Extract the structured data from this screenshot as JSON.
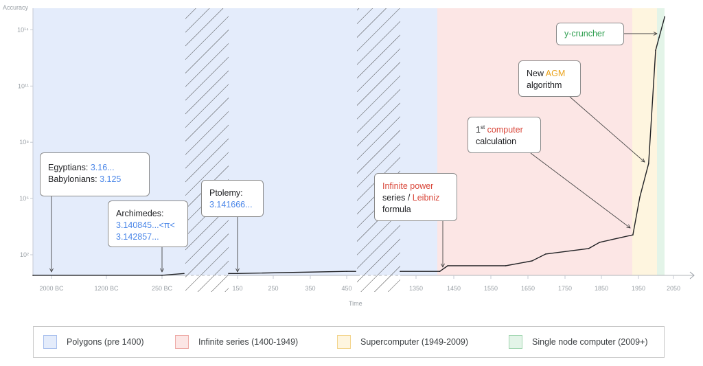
{
  "chart_data": {
    "type": "line",
    "title": "",
    "xlabel": "Time",
    "ylabel": "Accuracy",
    "y_scale": "log",
    "ylim": [
      5,
      1000000000000000.0
    ],
    "y_ticks": [
      {
        "value": 100.0,
        "label": "10²"
      },
      {
        "value": 100000.0,
        "label": "10⁵"
      },
      {
        "value": 100000000.0,
        "label": "10⁸"
      },
      {
        "value": 100000000000.0,
        "label": "10¹¹"
      },
      {
        "value": 100000000000000.0,
        "label": "10¹⁴"
      }
    ],
    "x_ticks": [
      {
        "value": -2000,
        "label": "2000 BC"
      },
      {
        "value": -1200,
        "label": "1200 BC"
      },
      {
        "value": -250,
        "label": "250 BC"
      },
      {
        "value": 150,
        "label": "150"
      },
      {
        "value": 250,
        "label": "250"
      },
      {
        "value": 350,
        "label": "350"
      },
      {
        "value": 450,
        "label": "450"
      },
      {
        "value": 1350,
        "label": "1350"
      },
      {
        "value": 1450,
        "label": "1450"
      },
      {
        "value": 1550,
        "label": "1550"
      },
      {
        "value": 1650,
        "label": "1650"
      },
      {
        "value": 1750,
        "label": "1750"
      },
      {
        "value": 1850,
        "label": "1850"
      },
      {
        "value": 1950,
        "label": "1950"
      },
      {
        "value": 2050,
        "label": "2050"
      }
    ],
    "axis_breaks": [
      [
        0,
        125
      ],
      [
        475,
        1307
      ]
    ],
    "grid": false,
    "legend_position": "bottom",
    "series": [
      {
        "segments": [
          [
            [
              -2300,
              8
            ],
            [
              -250,
              8
            ],
            [
              0,
              10
            ]
          ],
          [
            [
              125,
              10
            ],
            [
              150,
              10
            ],
            [
              450,
              13
            ],
            [
              475,
              13
            ]
          ],
          [
            [
              1307,
              13
            ],
            [
              1413,
              13
            ],
            [
              1434,
              26
            ],
            [
              1590,
              26
            ],
            [
              1661,
              47
            ],
            [
              1698,
              110
            ],
            [
              1815,
              215
            ],
            [
              1845,
              460
            ],
            [
              1935,
              1150
            ],
            [
              1954,
              120000
            ],
            [
              1979,
              7400000
            ],
            [
              1999,
              8000000000000
            ],
            [
              2009,
              40000000000000
            ],
            [
              2025,
              500000000000000
            ]
          ]
        ],
        "color": "#202124"
      }
    ],
    "eras": [
      {
        "label": "Polygons (pre 1400)",
        "from": -2300,
        "to": 1400,
        "color": "#e4ecfb",
        "border": "#a9c0ee"
      },
      {
        "label": "Infinite series (1400-1949)",
        "from": 1400,
        "to": 1949,
        "color": "#fce6e5",
        "border": "#eeaaa6"
      },
      {
        "label": "Supercomputer (1949-2009)",
        "from": 1949,
        "to": 2009,
        "color": "#fef5df",
        "border": "#f3d48c"
      },
      {
        "label": "Single node computer (2009+)",
        "from": 2009,
        "to": 2030,
        "color": "#e3f4e8",
        "border": "#a2d6b1"
      }
    ],
    "annotations": {
      "egyptians": {
        "l1a": "Egyptians: ",
        "l1b": "3.16...",
        "l2a": "Babylonians: ",
        "l2b": "3.125"
      },
      "archimedes": {
        "l1": "Archimedes:",
        "l2": "3.140845...<π<",
        "l3": "3.142857..."
      },
      "ptolemy": {
        "l1": "Ptolemy:",
        "l2": "3.141666..."
      },
      "infinite": {
        "l1": "Infinite power",
        "l2a": "series / ",
        "l2b": "Leibniz",
        "l3": "formula"
      },
      "computer": {
        "l1a": "1",
        "l1sup": "st",
        "l1b": " computer",
        "l2": "calculation"
      },
      "agm": {
        "l1a": "New ",
        "l1b": "AGM",
        "l2": "algorithm"
      },
      "ycruncher": {
        "l1": "y-cruncher"
      }
    }
  }
}
